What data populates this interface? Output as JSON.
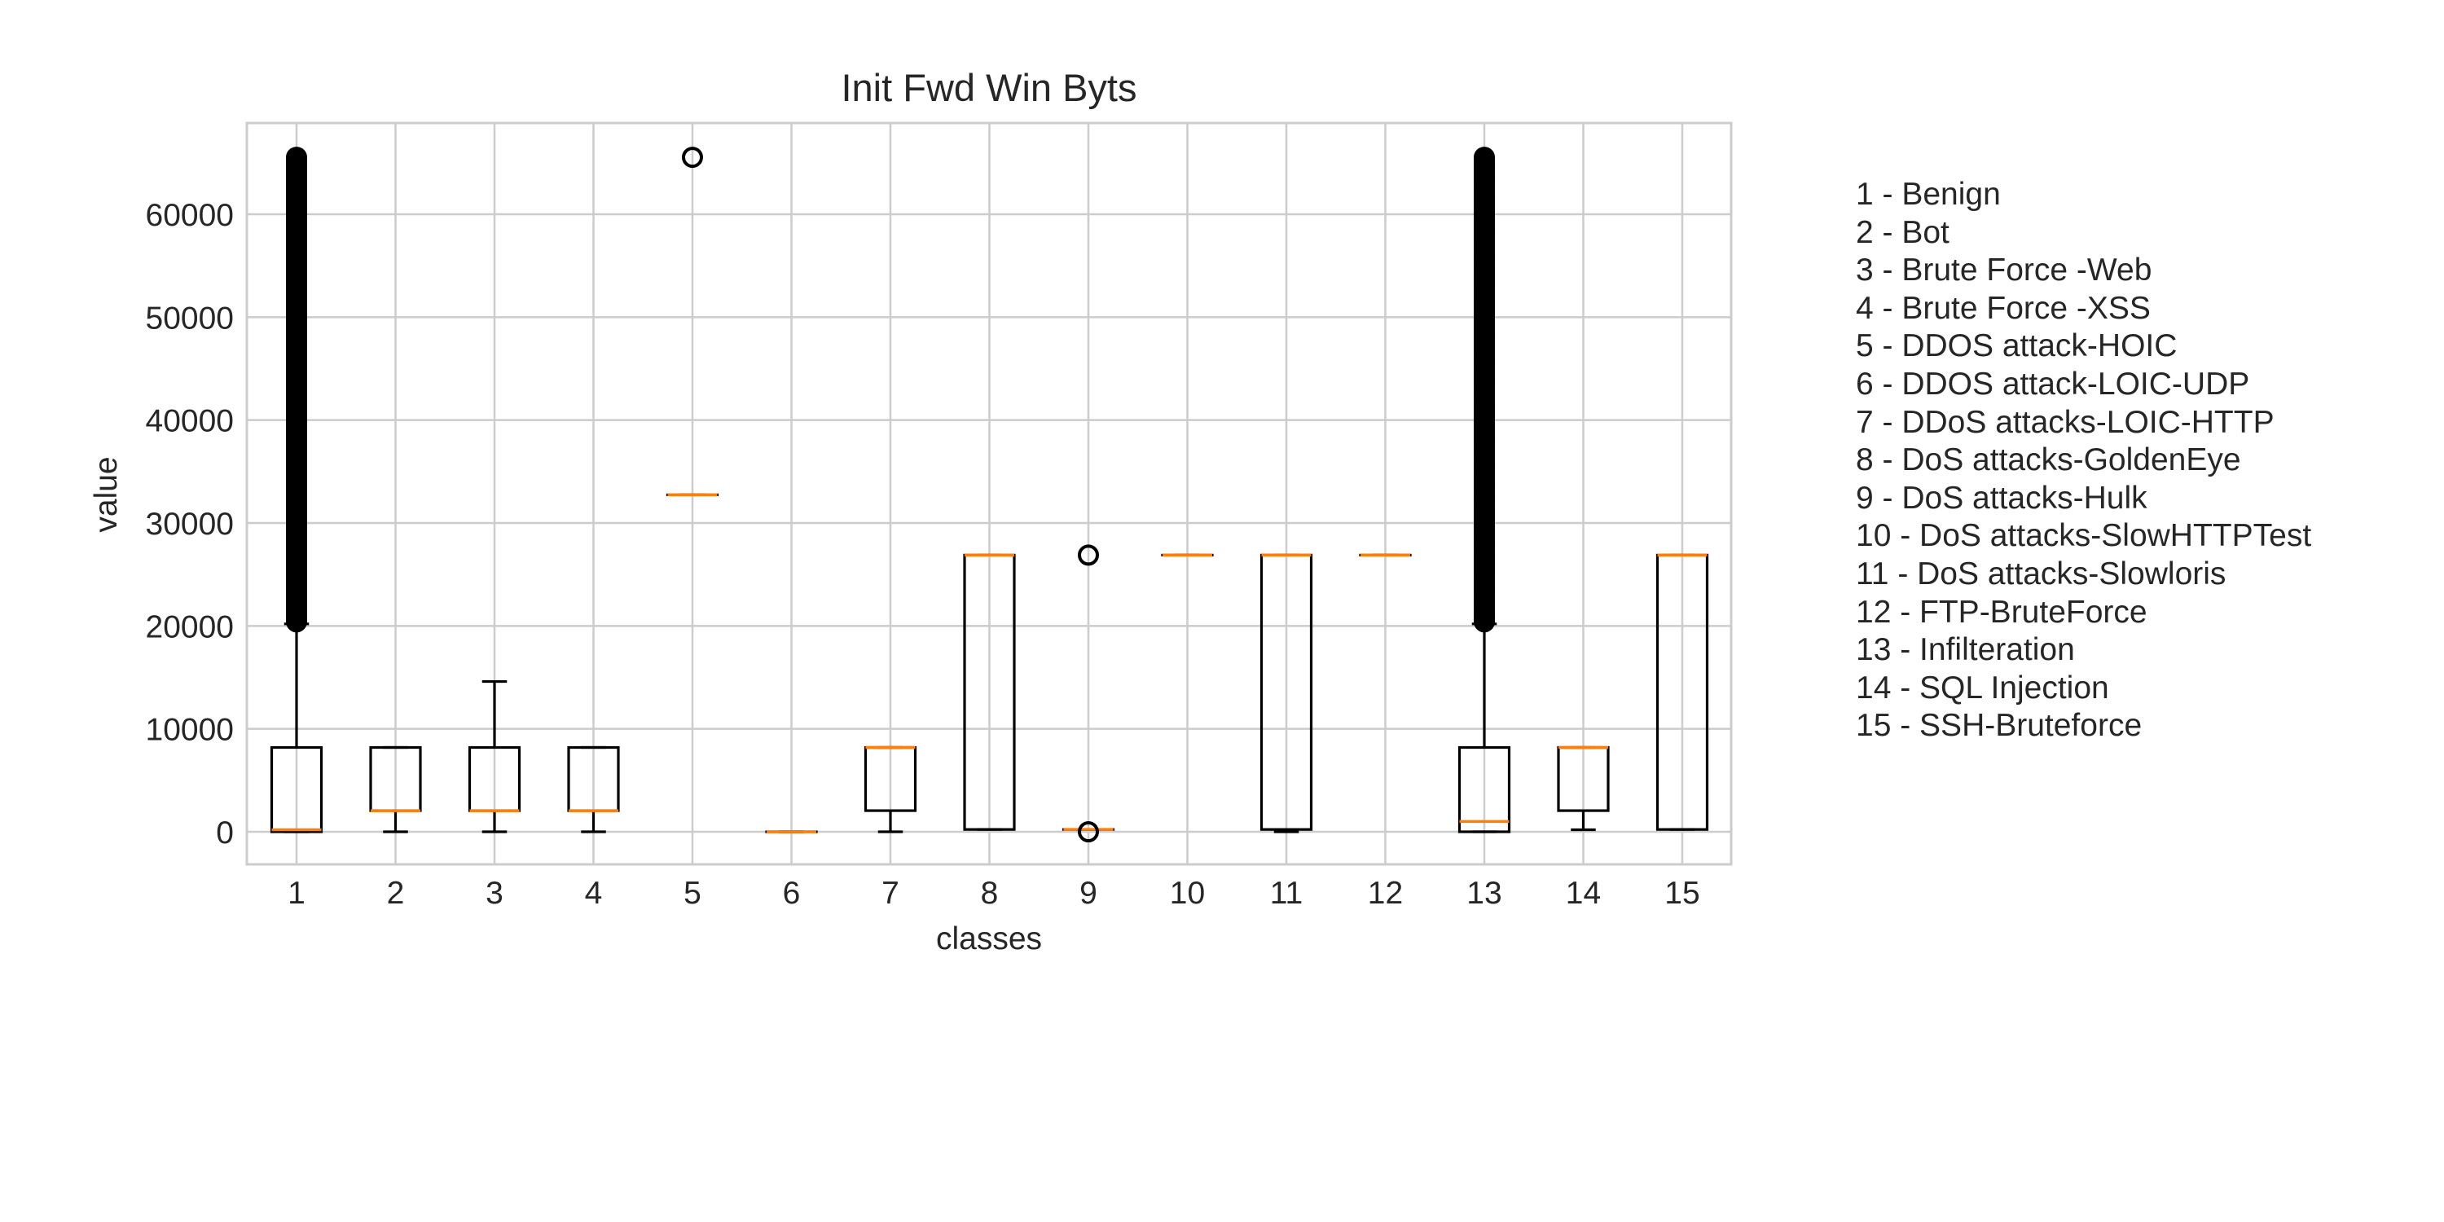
{
  "chart_data": {
    "type": "box",
    "title": "Init Fwd Win Byts",
    "xlabel": "classes",
    "ylabel": "value",
    "ylim": [
      -3200,
      68500
    ],
    "yticks": [
      0,
      10000,
      20000,
      30000,
      40000,
      50000,
      60000
    ],
    "grid": true,
    "categories": [
      "1",
      "2",
      "3",
      "4",
      "5",
      "6",
      "7",
      "8",
      "9",
      "10",
      "11",
      "12",
      "13",
      "14",
      "15"
    ],
    "series": [
      {
        "class": "1",
        "whisker_low": 0,
        "q1": 0,
        "median": 200,
        "q3": 8192,
        "whisker_high": 20200,
        "outliers_range": [
          20400,
          65535
        ]
      },
      {
        "class": "2",
        "whisker_low": 0,
        "q1": 2053,
        "median": 2053,
        "q3": 8192,
        "whisker_high": 8192,
        "outliers": []
      },
      {
        "class": "3",
        "whisker_low": 0,
        "q1": 2053,
        "median": 2053,
        "q3": 8192,
        "whisker_high": 14600,
        "outliers": []
      },
      {
        "class": "4",
        "whisker_low": 0,
        "q1": 2053,
        "median": 2053,
        "q3": 8192,
        "whisker_high": 8192,
        "outliers": []
      },
      {
        "class": "5",
        "whisker_low": 32738,
        "q1": 32738,
        "median": 32738,
        "q3": 32738,
        "whisker_high": 32738,
        "outliers": [
          65535
        ]
      },
      {
        "class": "6",
        "whisker_low": -1,
        "q1": -1,
        "median": -1,
        "q3": -1,
        "whisker_high": -1,
        "outliers": []
      },
      {
        "class": "7",
        "whisker_low": 0,
        "q1": 2053,
        "median": 8192,
        "q3": 8192,
        "whisker_high": 8192,
        "outliers": []
      },
      {
        "class": "8",
        "whisker_low": 225,
        "q1": 225,
        "median": 26883,
        "q3": 26883,
        "whisker_high": 26883,
        "outliers": []
      },
      {
        "class": "9",
        "whisker_low": 225,
        "q1": 225,
        "median": 225,
        "q3": 225,
        "whisker_high": 225,
        "outliers": [
          0,
          26883
        ]
      },
      {
        "class": "10",
        "whisker_low": 26883,
        "q1": 26883,
        "median": 26883,
        "q3": 26883,
        "whisker_high": 26883,
        "outliers": []
      },
      {
        "class": "11",
        "whisker_low": 0,
        "q1": 225,
        "median": 26883,
        "q3": 26883,
        "whisker_high": 26883,
        "outliers": []
      },
      {
        "class": "12",
        "whisker_low": 26883,
        "q1": 26883,
        "median": 26883,
        "q3": 26883,
        "whisker_high": 26883,
        "outliers": []
      },
      {
        "class": "13",
        "whisker_low": 0,
        "q1": 0,
        "median": 1000,
        "q3": 8192,
        "whisker_high": 20200,
        "outliers_range": [
          20400,
          65535
        ]
      },
      {
        "class": "14",
        "whisker_low": 200,
        "q1": 2053,
        "median": 8192,
        "q3": 8192,
        "whisker_high": 8192,
        "outliers": []
      },
      {
        "class": "15",
        "whisker_low": 225,
        "q1": 225,
        "median": 26883,
        "q3": 26883,
        "whisker_high": 26883,
        "outliers": []
      }
    ],
    "colors": {
      "box": "#000000",
      "median": "#ff7f0e",
      "grid": "#cccccc",
      "frame": "#cccccc"
    }
  },
  "legend": [
    "1 - Benign",
    "2 - Bot",
    "3 - Brute Force -Web",
    "4 - Brute Force -XSS",
    "5 - DDOS attack-HOIC",
    "6 - DDOS attack-LOIC-UDP",
    "7 - DDoS attacks-LOIC-HTTP",
    "8 - DoS attacks-GoldenEye",
    "9 - DoS attacks-Hulk",
    "10 - DoS attacks-SlowHTTPTest",
    "11 - DoS attacks-Slowloris",
    "12 - FTP-BruteForce",
    "13 - Infilteration",
    "14 - SQL Injection",
    "15 - SSH-Bruteforce"
  ]
}
